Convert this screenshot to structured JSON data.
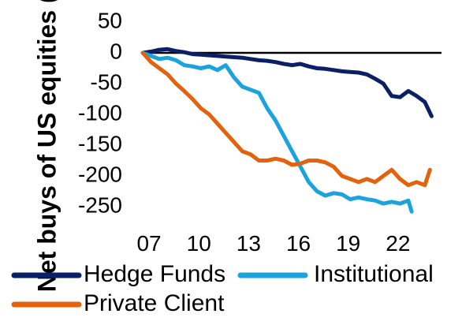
{
  "chart_data": {
    "type": "line",
    "ylabel": "Net buys of US equities ($bn)",
    "xlabel": "",
    "title": "",
    "ylim": [
      -250,
      50
    ],
    "xlim": [
      6,
      25
    ],
    "y_ticks": [
      50,
      0,
      -50,
      -100,
      -150,
      -200,
      -250
    ],
    "y_tick_labels": [
      "50",
      "0",
      "-50",
      "-100",
      "-150",
      "-200",
      "-250"
    ],
    "x_ticks": [
      7,
      10,
      13,
      16,
      19,
      22
    ],
    "x_tick_labels": [
      "07",
      "10",
      "13",
      "16",
      "19",
      "22"
    ],
    "zero_line": true,
    "grid": false,
    "legend_position": "bottom",
    "series": [
      {
        "name": "Hedge Funds",
        "color": "#0b1f66",
        "x": [
          7,
          7.5,
          8,
          8.5,
          9,
          9.5,
          10,
          10.5,
          11,
          11.5,
          12,
          12.5,
          13,
          13.5,
          14,
          14.5,
          15,
          15.5,
          16,
          16.5,
          17,
          17.5,
          18,
          18.5,
          19,
          19.5,
          20,
          20.5,
          21,
          21.5,
          22,
          22.5,
          23,
          23.5,
          24,
          24.4
        ],
        "y": [
          0,
          2,
          5,
          6,
          3,
          1,
          -2,
          -3,
          -4,
          -5,
          -6,
          -7,
          -8,
          -10,
          -12,
          -13,
          -15,
          -18,
          -20,
          -18,
          -22,
          -25,
          -26,
          -28,
          -30,
          -31,
          -32,
          -35,
          -42,
          -50,
          -70,
          -72,
          -62,
          -70,
          -80,
          -103
        ]
      },
      {
        "name": "Institutional",
        "color": "#1aa3dd",
        "x": [
          7,
          7.5,
          8,
          8.5,
          9,
          9.5,
          10,
          10.5,
          11,
          11.5,
          12,
          12.5,
          13,
          13.5,
          14,
          14.5,
          15,
          15.5,
          16,
          16.5,
          17,
          17.5,
          18,
          18.5,
          19,
          19.5,
          20,
          20.5,
          21,
          21.5,
          22,
          22.5,
          23,
          23.2
        ],
        "y": [
          0,
          -5,
          -10,
          -8,
          -12,
          -20,
          -22,
          -25,
          -22,
          -28,
          -20,
          -40,
          -55,
          -60,
          -65,
          -90,
          -110,
          -135,
          -160,
          -185,
          -210,
          -225,
          -232,
          -228,
          -230,
          -238,
          -235,
          -238,
          -240,
          -245,
          -242,
          -245,
          -240,
          -258
        ]
      },
      {
        "name": "Private Client",
        "color": "#e3620c",
        "x": [
          7,
          7.5,
          8,
          8.5,
          9,
          9.5,
          10,
          10.5,
          11,
          11.5,
          12,
          12.5,
          13,
          13.5,
          14,
          14.5,
          15,
          15.5,
          16,
          16.5,
          17,
          17.5,
          18,
          18.5,
          19,
          19.5,
          20,
          20.5,
          21,
          21.5,
          22,
          22.5,
          23,
          23.5,
          24,
          24.3
        ],
        "y": [
          0,
          -15,
          -25,
          -35,
          -50,
          -62,
          -75,
          -90,
          -100,
          -115,
          -130,
          -145,
          -160,
          -165,
          -175,
          -175,
          -172,
          -175,
          -182,
          -180,
          -175,
          -175,
          -178,
          -185,
          -200,
          -205,
          -210,
          -205,
          -210,
          -200,
          -190,
          -205,
          -215,
          -210,
          -215,
          -190
        ]
      }
    ]
  }
}
